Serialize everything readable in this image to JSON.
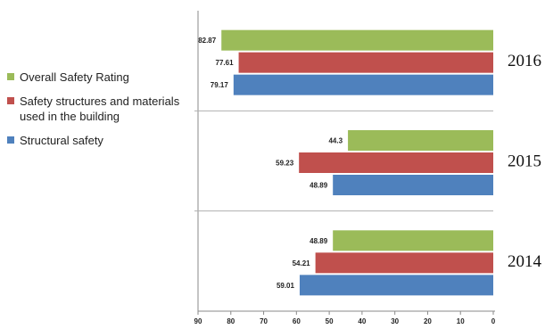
{
  "chart_data": {
    "type": "bar",
    "orientation": "horizontal",
    "x_reversed": true,
    "xlim": [
      0,
      90
    ],
    "xticks": [
      90,
      80,
      70,
      60,
      50,
      40,
      30,
      20,
      10,
      0
    ],
    "grid": false,
    "legend_position": "left",
    "categories": [
      "2016",
      "2015",
      "2014"
    ],
    "series": [
      {
        "name": "Overall Safety Rating",
        "color": "#9bbb59",
        "values": [
          82.87,
          44.3,
          48.89
        ],
        "labels": [
          "82.87",
          "44.3",
          "48.89"
        ]
      },
      {
        "name": "Safety structures and materials used in the building",
        "color": "#c0504d",
        "values": [
          77.61,
          59.23,
          54.21
        ],
        "labels": [
          "77.61",
          "59.23",
          "54.21"
        ]
      },
      {
        "name": "Structural safety",
        "color": "#4f81bd",
        "values": [
          79.17,
          48.89,
          59.01
        ],
        "labels": [
          "79.17",
          "48.89",
          "59.01"
        ]
      }
    ]
  }
}
